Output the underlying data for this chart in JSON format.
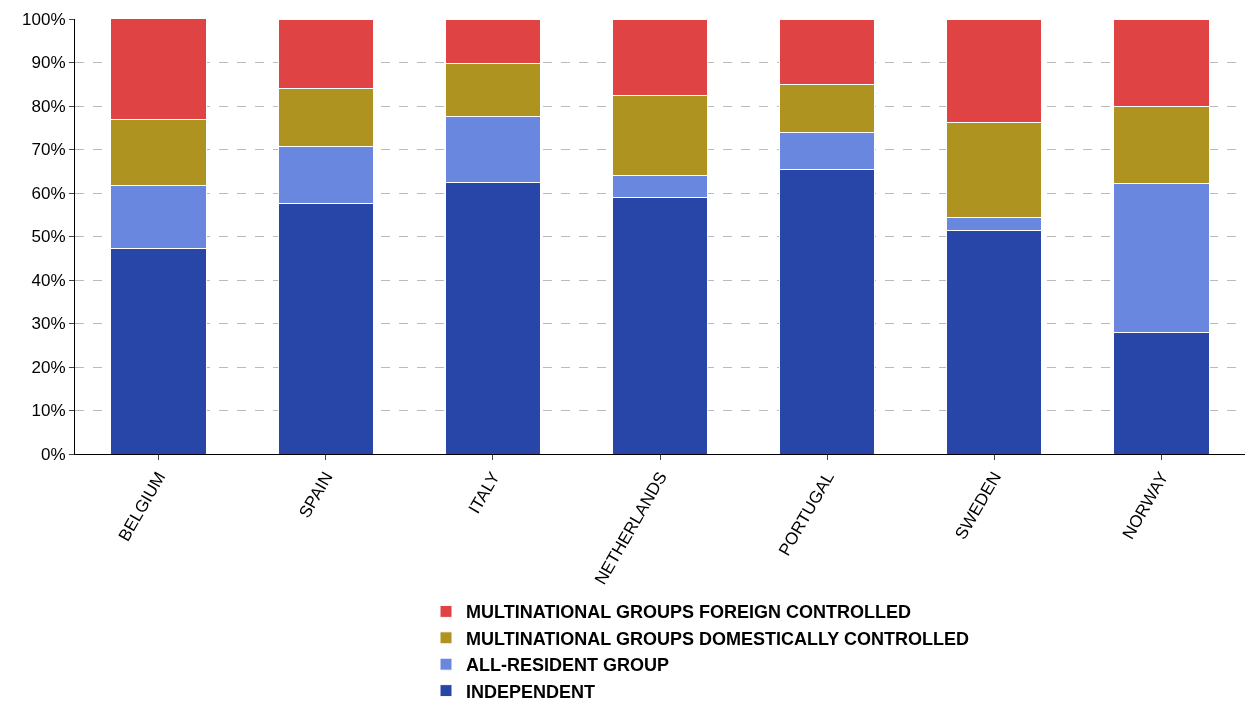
{
  "chart_data": {
    "type": "bar",
    "stacked": true,
    "categories": [
      "BELGIUM",
      "SPAIN",
      "ITALY",
      "NETHERLANDS",
      "PORTUGAL",
      "SWEDEN",
      "NORWAY"
    ],
    "series": [
      {
        "name": "INDEPENDENT",
        "color": "#2746a8",
        "values": [
          47.3,
          57.5,
          62.4,
          58.9,
          65.3,
          51.3,
          28.0
        ]
      },
      {
        "name": "ALL-RESIDENT GROUP",
        "color": "#6a87e0",
        "values": [
          14.5,
          13.2,
          15.3,
          5.1,
          8.6,
          3.0,
          34.1
        ]
      },
      {
        "name": "MULTINATIONAL GROUPS DOMESTICALLY CONTROLLED",
        "color": "#ae9320",
        "values": [
          15.1,
          13.4,
          12.1,
          18.5,
          11.0,
          22.0,
          17.7
        ]
      },
      {
        "name": "MULTINATIONAL GROUPS FOREIGN CONTROLLED",
        "color": "#e04343",
        "values": [
          23.3,
          15.9,
          10.2,
          17.5,
          15.1,
          23.7,
          20.2
        ]
      }
    ],
    "ylim": [
      0,
      100
    ],
    "yticks": [
      {
        "value": 0,
        "label": "0%"
      },
      {
        "value": 10,
        "label": "10%"
      },
      {
        "value": 20,
        "label": "20%"
      },
      {
        "value": 30,
        "label": "30%"
      },
      {
        "value": 40,
        "label": "40%"
      },
      {
        "value": 50,
        "label": "50%"
      },
      {
        "value": 60,
        "label": "60%"
      },
      {
        "value": 70,
        "label": "70%"
      },
      {
        "value": 80,
        "label": "80%"
      },
      {
        "value": 90,
        "label": "90%"
      },
      {
        "value": 100,
        "label": "100%"
      }
    ],
    "grid": "y",
    "legend": "bottom"
  }
}
